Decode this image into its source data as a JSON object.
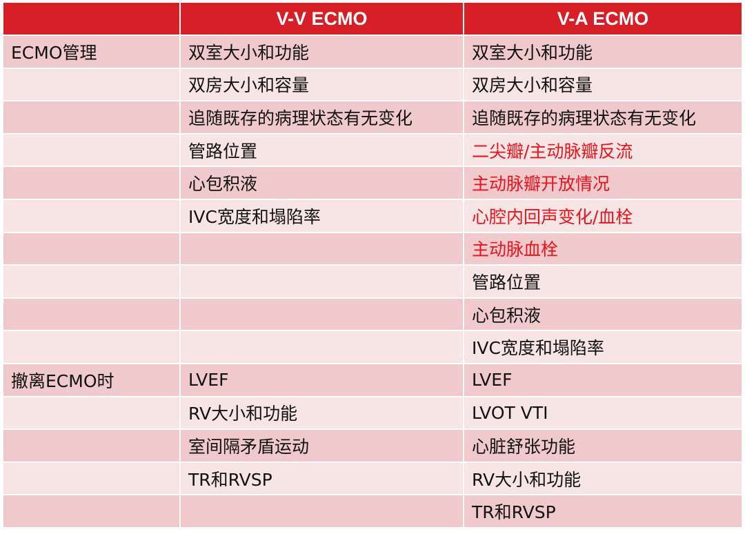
{
  "headers": [
    "",
    "V-V ECMO",
    "V-A ECMO"
  ],
  "rows": [
    {
      "c0": "ECMO管理",
      "c1": "双室大小和功能",
      "c2": "双室大小和功能",
      "c2_red": false
    },
    {
      "c0": "",
      "c1": "双房大小和容量",
      "c2": "双房大小和容量",
      "c2_red": false
    },
    {
      "c0": "",
      "c1": "追随既存的病理状态有无变化",
      "c2": "追随既存的病理状态有无变化",
      "c2_red": false
    },
    {
      "c0": "",
      "c1": "管路位置",
      "c2": "二尖瓣/主动脉瓣反流",
      "c2_red": true
    },
    {
      "c0": "",
      "c1": "心包积液",
      "c2": "主动脉瓣开放情况",
      "c2_red": true
    },
    {
      "c0": "",
      "c1": "IVC宽度和塌陷率",
      "c2": "心腔内回声变化/血栓",
      "c2_red": true
    },
    {
      "c0": "",
      "c1": "",
      "c2": "主动脉血栓",
      "c2_red": true
    },
    {
      "c0": "",
      "c1": "",
      "c2": "管路位置",
      "c2_red": false
    },
    {
      "c0": "",
      "c1": "",
      "c2": "心包积液",
      "c2_red": false
    },
    {
      "c0": "",
      "c1": "",
      "c2": "IVC宽度和塌陷率",
      "c2_red": false
    },
    {
      "c0": "撤离ECMO时",
      "c1": "LVEF",
      "c2": "LVEF",
      "c2_red": false
    },
    {
      "c0": "",
      "c1": "RV大小和功能",
      "c2": "LVOT VTI",
      "c2_red": false
    },
    {
      "c0": "",
      "c1": "室间隔矛盾运动",
      "c2": "心脏舒张功能",
      "c2_red": false
    },
    {
      "c0": "",
      "c1": "TR和RVSP",
      "c2": "RV大小和功能",
      "c2_red": false
    },
    {
      "c0": "",
      "c1": "",
      "c2": "TR和RVSP",
      "c2_red": false
    }
  ],
  "colors": {
    "header_bg": "#d61f26",
    "row_odd": "#efc9cb",
    "row_even": "#f7e4e5",
    "highlight_text": "#e8141c"
  }
}
